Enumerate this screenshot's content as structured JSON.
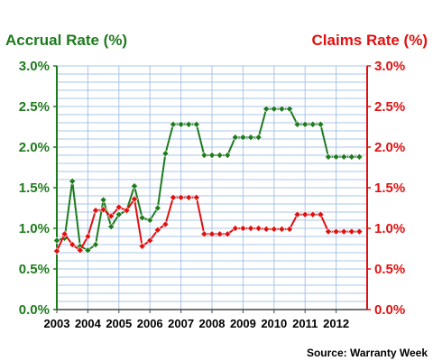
{
  "chart_data": {
    "type": "line",
    "title_left": "Accrual Rate (%)",
    "title_right": "Claims Rate (%)",
    "source": "Source: Warranty Week",
    "x_labels": [
      "2003",
      "2004",
      "2005",
      "2006",
      "2007",
      "2008",
      "2009",
      "2010",
      "2011",
      "2012"
    ],
    "y_ticks": [
      "0.0%",
      "0.5%",
      "1.0%",
      "1.5%",
      "2.0%",
      "2.5%",
      "3.0%"
    ],
    "ylim": [
      0,
      3
    ],
    "grid": true,
    "colors": {
      "accrual": "#1e7b1e",
      "claims": "#e01010",
      "grid": "#a9c4ea"
    },
    "series": [
      {
        "name": "Accrual Rate (%)",
        "axis": "left",
        "x": [
          2003.0,
          2003.25,
          2003.5,
          2003.75,
          2004.0,
          2004.25,
          2004.5,
          2004.75,
          2005.0,
          2005.25,
          2005.5,
          2005.75,
          2006.0,
          2006.25,
          2006.5,
          2006.75,
          2007.0,
          2007.25,
          2007.5,
          2007.75,
          2008.0,
          2008.25,
          2008.5,
          2008.75,
          2009.0,
          2009.25,
          2009.5,
          2009.75,
          2010.0,
          2010.25,
          2010.5,
          2010.75,
          2011.0,
          2011.25,
          2011.5,
          2011.75,
          2012.0,
          2012.25,
          2012.5,
          2012.75
        ],
        "values": [
          0.85,
          0.88,
          1.58,
          0.78,
          0.73,
          0.8,
          1.35,
          1.02,
          1.17,
          1.22,
          1.52,
          1.13,
          1.1,
          1.25,
          1.92,
          2.28,
          2.28,
          2.28,
          2.28,
          1.9,
          1.9,
          1.9,
          1.9,
          2.12,
          2.12,
          2.12,
          2.12,
          2.47,
          2.47,
          2.47,
          2.47,
          2.28,
          2.28,
          2.28,
          2.28,
          1.88,
          1.88,
          1.88,
          1.88,
          1.88
        ]
      },
      {
        "name": "Claims Rate (%)",
        "axis": "right",
        "x": [
          2003.0,
          2003.25,
          2003.5,
          2003.75,
          2004.0,
          2004.25,
          2004.5,
          2004.75,
          2005.0,
          2005.25,
          2005.5,
          2005.75,
          2006.0,
          2006.25,
          2006.5,
          2006.75,
          2007.0,
          2007.25,
          2007.5,
          2007.75,
          2008.0,
          2008.25,
          2008.5,
          2008.75,
          2009.0,
          2009.25,
          2009.5,
          2009.75,
          2010.0,
          2010.25,
          2010.5,
          2010.75,
          2011.0,
          2011.25,
          2011.5,
          2011.75,
          2012.0,
          2012.25,
          2012.5,
          2012.75
        ],
        "values": [
          0.72,
          0.93,
          0.8,
          0.73,
          0.9,
          1.22,
          1.23,
          1.15,
          1.26,
          1.22,
          1.36,
          0.78,
          0.85,
          0.98,
          1.05,
          1.38,
          1.38,
          1.38,
          1.38,
          0.93,
          0.93,
          0.93,
          0.93,
          1.0,
          1.0,
          1.0,
          1.0,
          0.99,
          0.99,
          0.99,
          0.99,
          1.17,
          1.17,
          1.17,
          1.17,
          0.96,
          0.96,
          0.96,
          0.96,
          0.96
        ]
      }
    ]
  }
}
